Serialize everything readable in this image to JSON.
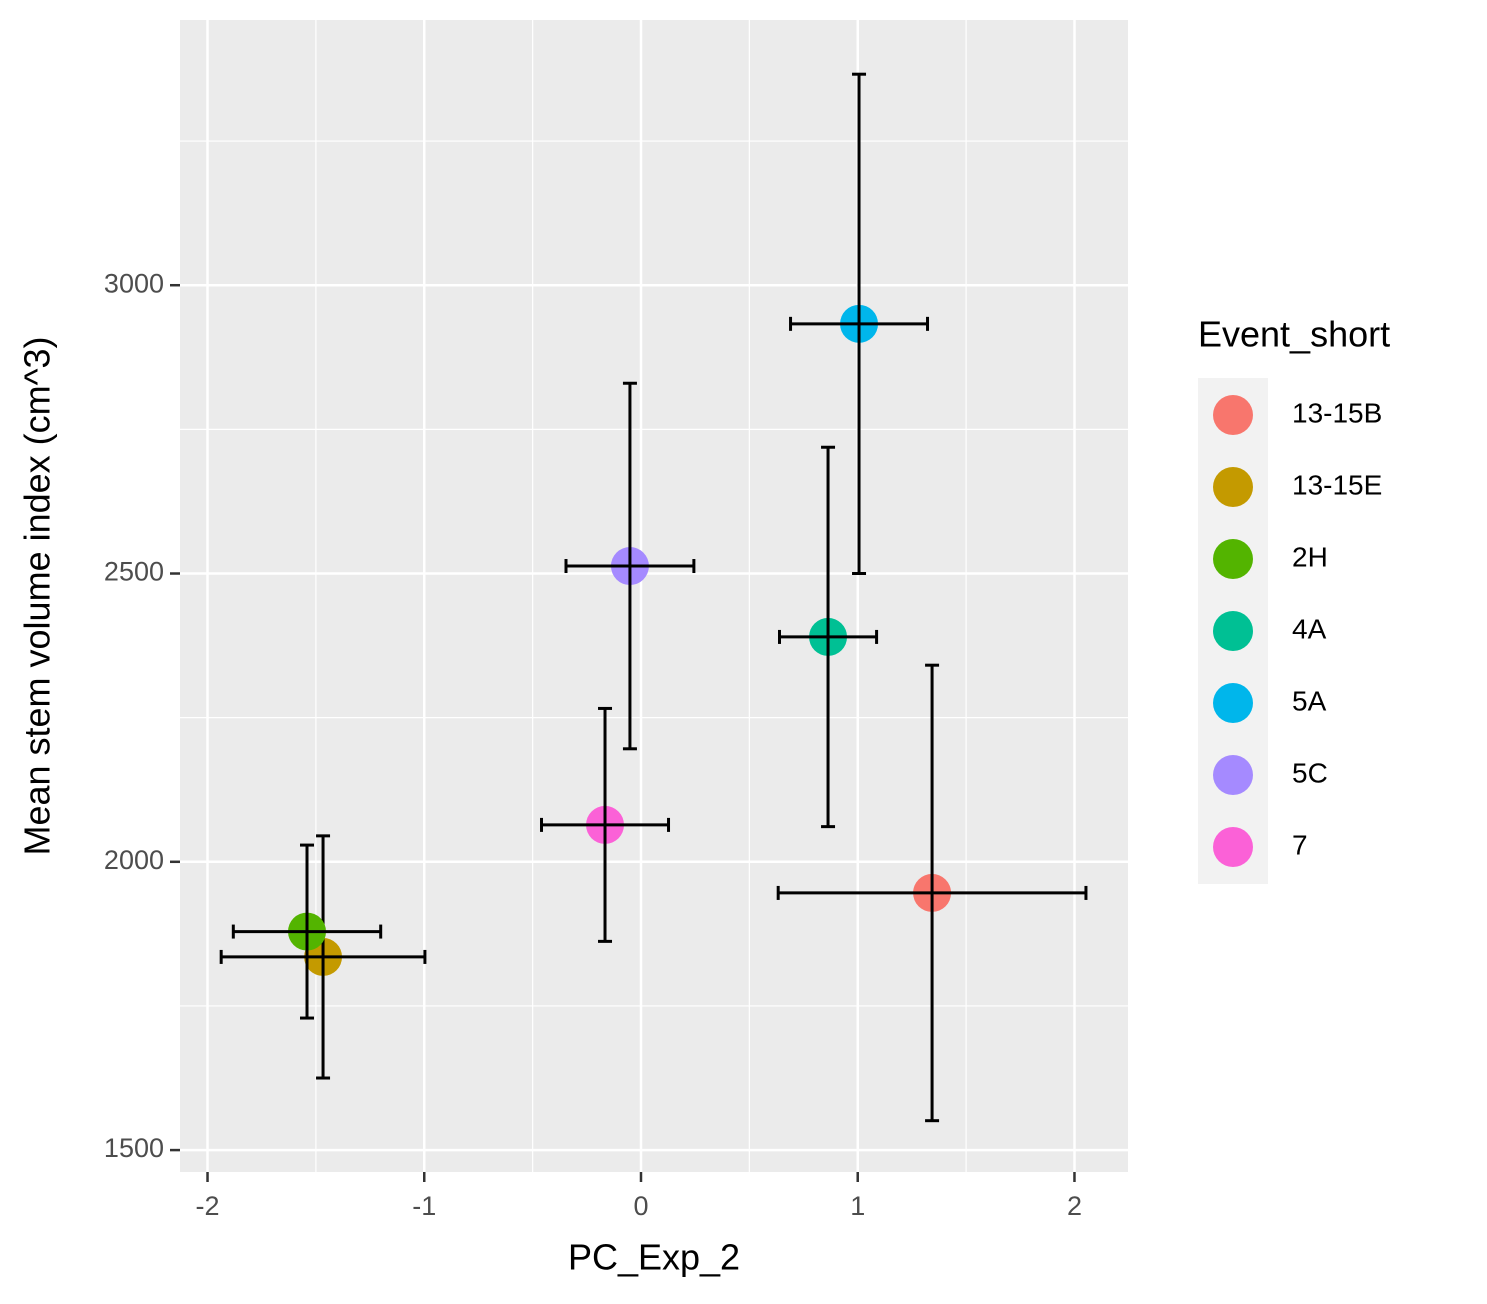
{
  "chart_data": {
    "type": "scatter",
    "x_label": "PC_Exp_2",
    "y_label": "Mean stem volume index (cm^3)",
    "legend_title": "Event_short",
    "legend_position": "right",
    "grid": true,
    "xlim": [
      -2.127,
      2.247
    ],
    "ylim": [
      1462,
      3460
    ],
    "xticks": [
      -2,
      -1,
      0,
      1,
      2
    ],
    "yticks": [
      1500,
      2000,
      2500,
      3000
    ],
    "xminor": [
      -1.5,
      -0.5,
      0.5,
      1.5
    ],
    "yminor": [
      1750,
      2250,
      2750,
      3250
    ],
    "series": [
      {
        "name": "13-15B",
        "color": "#F8766D",
        "x": [
          1.343
        ],
        "values": [
          1946
        ],
        "xerr": [
          0.71
        ],
        "yerr": [
          395
        ]
      },
      {
        "name": "13-15E",
        "color": "#C49A00",
        "x": [
          -1.467
        ],
        "values": [
          1835
        ],
        "xerr": [
          0.47
        ],
        "yerr": [
          210
        ]
      },
      {
        "name": "2H",
        "color": "#53B400",
        "x": [
          -1.541
        ],
        "values": [
          1879
        ],
        "xerr": [
          0.34
        ],
        "yerr": [
          150
        ]
      },
      {
        "name": "4A",
        "color": "#00C094",
        "x": [
          0.863
        ],
        "values": [
          2390
        ],
        "xerr": [
          0.224
        ],
        "yerr": [
          329
        ]
      },
      {
        "name": "5A",
        "color": "#00B6EB",
        "x": [
          1.006
        ],
        "values": [
          2933
        ],
        "xerr": [
          0.316
        ],
        "yerr": [
          433
        ]
      },
      {
        "name": "5C",
        "color": "#A58AFF",
        "x": [
          -0.051
        ],
        "values": [
          2513
        ],
        "xerr": [
          0.295
        ],
        "yerr": [
          317
        ]
      },
      {
        "name": "7",
        "color": "#FB61D7",
        "x": [
          -0.166
        ],
        "values": [
          2064
        ],
        "xerr": [
          0.293
        ],
        "yerr": [
          202
        ]
      }
    ]
  }
}
